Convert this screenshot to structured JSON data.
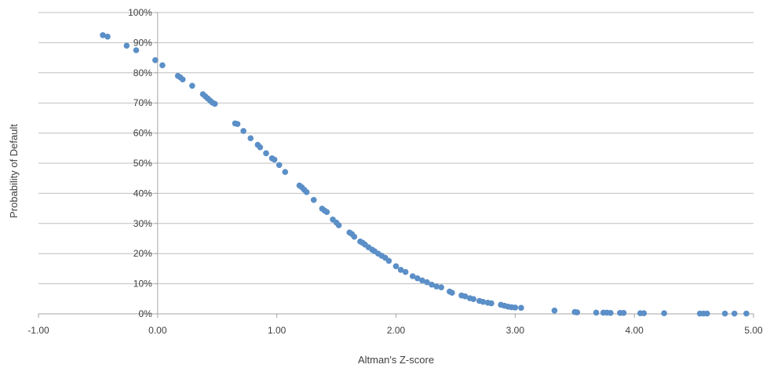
{
  "chart_data": {
    "type": "scatter",
    "title": "",
    "xlabel": "Altman's Z-score",
    "ylabel": "Probability of Default",
    "xlim": [
      -1.0,
      5.0
    ],
    "ylim": [
      0,
      1.0
    ],
    "x_ticks": [
      "-1.00",
      "0.00",
      "1.00",
      "2.00",
      "3.00",
      "4.00",
      "5.00"
    ],
    "y_ticks": [
      "0%",
      "10%",
      "20%",
      "30%",
      "40%",
      "50%",
      "60%",
      "70%",
      "80%",
      "90%",
      "100%"
    ],
    "grid": "horizontal",
    "legend": "none",
    "colors": {
      "marker": "#5b8fc7",
      "grid": "#bfbfbf",
      "axis": "#a6a6a6",
      "text": "#3f3f3f"
    },
    "series": [
      {
        "x": [
          -0.46,
          -0.42,
          -0.26,
          -0.18,
          -0.02,
          0.04,
          0.17,
          0.19,
          0.21,
          0.29,
          0.38,
          0.4,
          0.42,
          0.44,
          0.46,
          0.48,
          0.65,
          0.67,
          0.72,
          0.78,
          0.84,
          0.86,
          0.91,
          0.96,
          0.98,
          1.02,
          1.07,
          1.19,
          1.21,
          1.23,
          1.25,
          1.31,
          1.38,
          1.4,
          1.42,
          1.47,
          1.5,
          1.52,
          1.61,
          1.63,
          1.65,
          1.7,
          1.72,
          1.74,
          1.77,
          1.8,
          1.82,
          1.85,
          1.88,
          1.91,
          1.94,
          2.0,
          2.04,
          2.08,
          2.14,
          2.18,
          2.22,
          2.26,
          2.3,
          2.34,
          2.38,
          2.45,
          2.47,
          2.55,
          2.58,
          2.62,
          2.65,
          2.7,
          2.73,
          2.77,
          2.8,
          2.88,
          2.91,
          2.94,
          2.97,
          3.0,
          3.05,
          3.33,
          3.5,
          3.52,
          3.68,
          3.74,
          3.77,
          3.8,
          3.88,
          3.91,
          4.05,
          4.08,
          4.25,
          4.55,
          4.58,
          4.61,
          4.76,
          4.84,
          4.94
        ],
        "y": [
          0.925,
          0.92,
          0.89,
          0.875,
          0.842,
          0.825,
          0.79,
          0.785,
          0.778,
          0.757,
          0.729,
          0.722,
          0.715,
          0.708,
          0.701,
          0.697,
          0.632,
          0.63,
          0.607,
          0.583,
          0.561,
          0.553,
          0.533,
          0.516,
          0.512,
          0.494,
          0.471,
          0.426,
          0.42,
          0.412,
          0.404,
          0.378,
          0.349,
          0.343,
          0.338,
          0.313,
          0.303,
          0.294,
          0.27,
          0.265,
          0.256,
          0.24,
          0.236,
          0.23,
          0.221,
          0.213,
          0.208,
          0.2,
          0.193,
          0.186,
          0.176,
          0.158,
          0.146,
          0.139,
          0.125,
          0.118,
          0.111,
          0.105,
          0.097,
          0.091,
          0.088,
          0.074,
          0.07,
          0.061,
          0.058,
          0.052,
          0.049,
          0.043,
          0.04,
          0.037,
          0.035,
          0.03,
          0.027,
          0.024,
          0.022,
          0.021,
          0.02,
          0.011,
          0.006,
          0.005,
          0.004,
          0.004,
          0.004,
          0.003,
          0.003,
          0.003,
          0.002,
          0.002,
          0.002,
          0.001,
          0.001,
          0.001,
          0.001,
          0.001,
          0.001
        ]
      }
    ]
  }
}
